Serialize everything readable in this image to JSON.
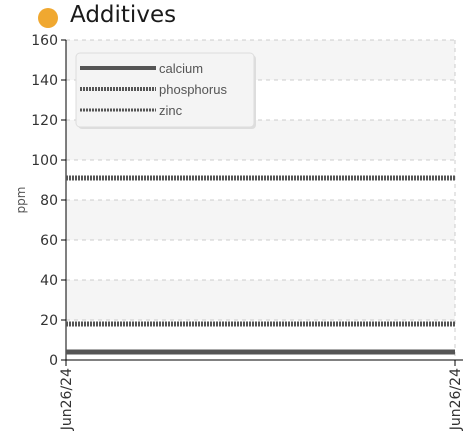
{
  "chart_data": {
    "type": "line",
    "title": "Additives",
    "ylabel": "ppm",
    "xlabel": "",
    "ylim": [
      0,
      160
    ],
    "yticks": [
      0,
      20,
      40,
      60,
      80,
      100,
      120,
      140,
      160
    ],
    "grid": true,
    "legend_position": "top-left",
    "x": [
      "Jun26/24",
      "Jun26/24"
    ],
    "series": [
      {
        "name": "calcium",
        "values": [
          4,
          4
        ],
        "style": "solid",
        "color": "#555555"
      },
      {
        "name": "phosphorus",
        "values": [
          18,
          18
        ],
        "style": "dotted",
        "color": "#555555"
      },
      {
        "name": "zinc",
        "values": [
          91,
          91
        ],
        "style": "dotted",
        "color": "#555555"
      }
    ]
  },
  "colors": {
    "title_dot": "#f0a830",
    "axis": "#000000",
    "grid": "#cccccc",
    "band": "#f5f5f5"
  }
}
